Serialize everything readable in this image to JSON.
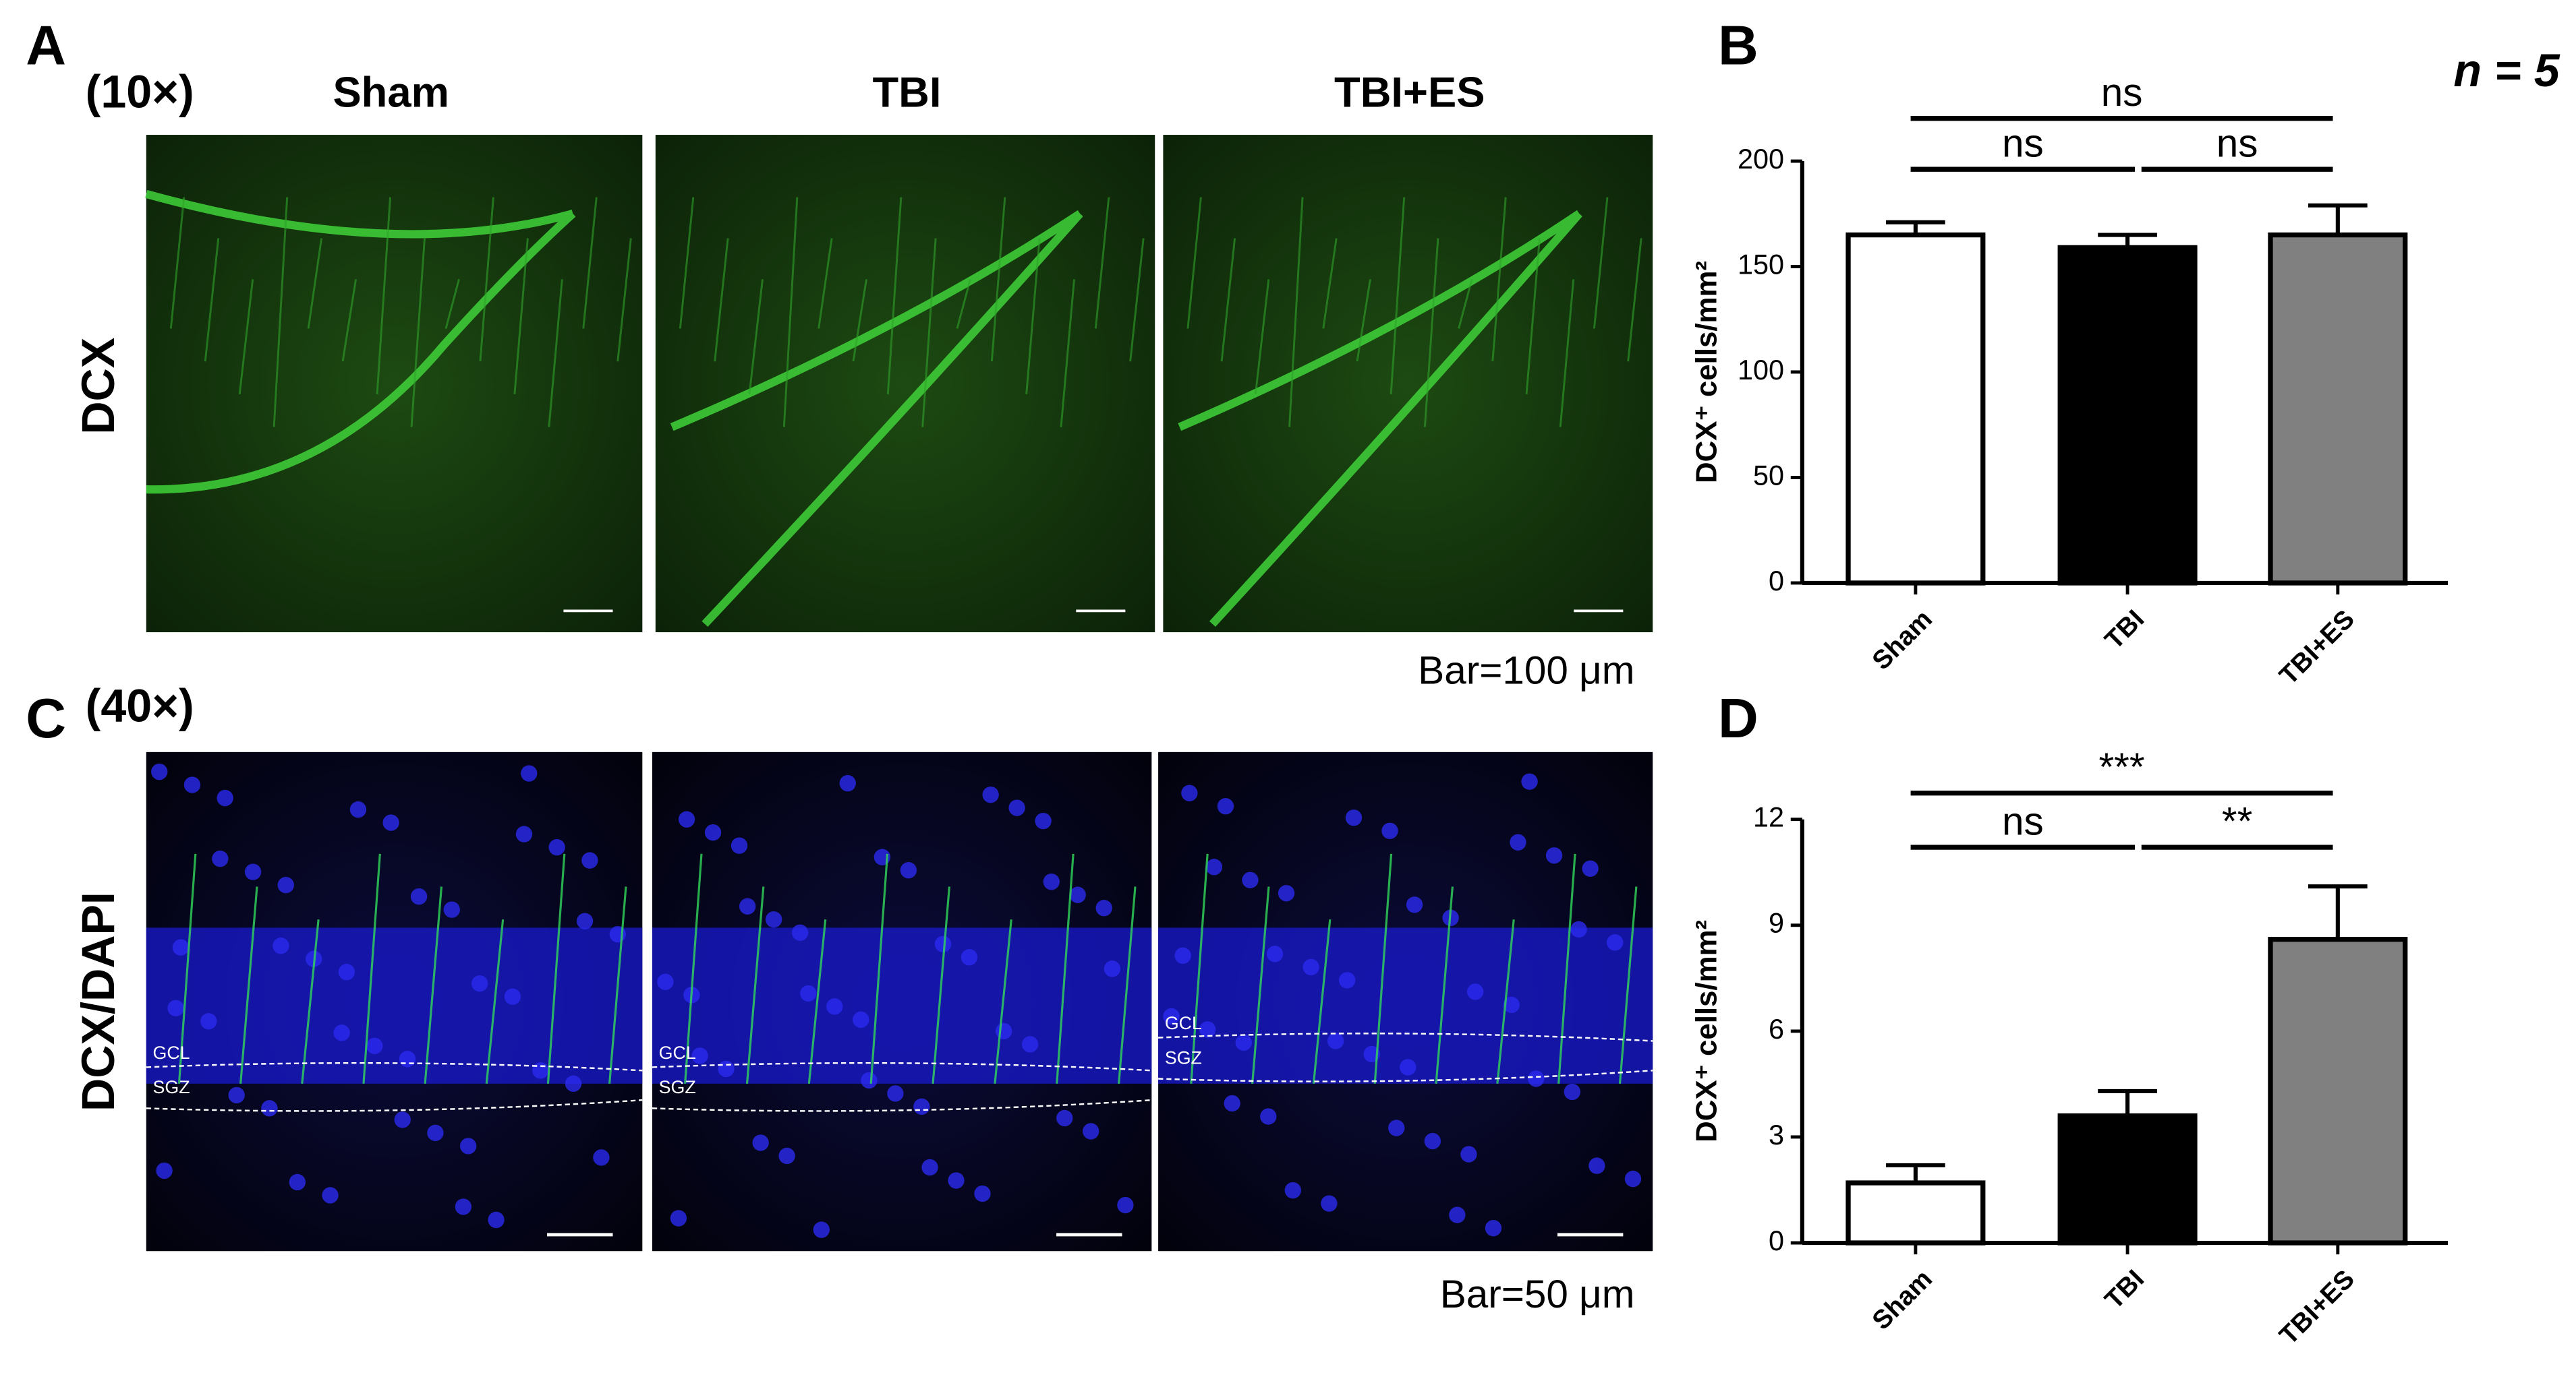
{
  "figure": {
    "panel_labels": [
      "A",
      "B",
      "C",
      "D"
    ],
    "magnification_10x": "(10×)",
    "magnification_40x": "(40×)",
    "group_titles": [
      "Sham",
      "TBI",
      "TBI+ES"
    ],
    "row_label_a": "DCX",
    "row_label_c": "DCX/DAPI",
    "scale_bar_a": "Bar=100 μm",
    "scale_bar_c": "Bar=50 μm",
    "layer_labels": [
      "GCL",
      "SGZ"
    ],
    "sample_size": "n = 5"
  },
  "chart_data": [
    {
      "type": "bar",
      "categories": [
        "Sham",
        "TBI",
        "TBI+ES"
      ],
      "values": [
        165,
        159,
        165
      ],
      "error": [
        6,
        6,
        14
      ],
      "colors": [
        "#ffffff",
        "#000000",
        "#808080"
      ],
      "y_label": "DCX⁺ cells/mm²",
      "ylim": [
        0,
        200
      ],
      "yticks": [
        0,
        50,
        100,
        150,
        200
      ],
      "annotations": [
        "ns",
        "ns",
        "ns"
      ]
    },
    {
      "type": "bar",
      "categories": [
        "Sham",
        "TBI",
        "TBI+ES"
      ],
      "values": [
        1.7,
        3.6,
        8.6
      ],
      "error": [
        0.5,
        0.7,
        1.5
      ],
      "colors": [
        "#ffffff",
        "#000000",
        "#808080"
      ],
      "y_label": "DCX⁺ cells/mm²",
      "ylim": [
        0,
        12
      ],
      "yticks": [
        0,
        3,
        6,
        9,
        12
      ],
      "annotations": [
        "***",
        "ns",
        "**"
      ]
    }
  ]
}
